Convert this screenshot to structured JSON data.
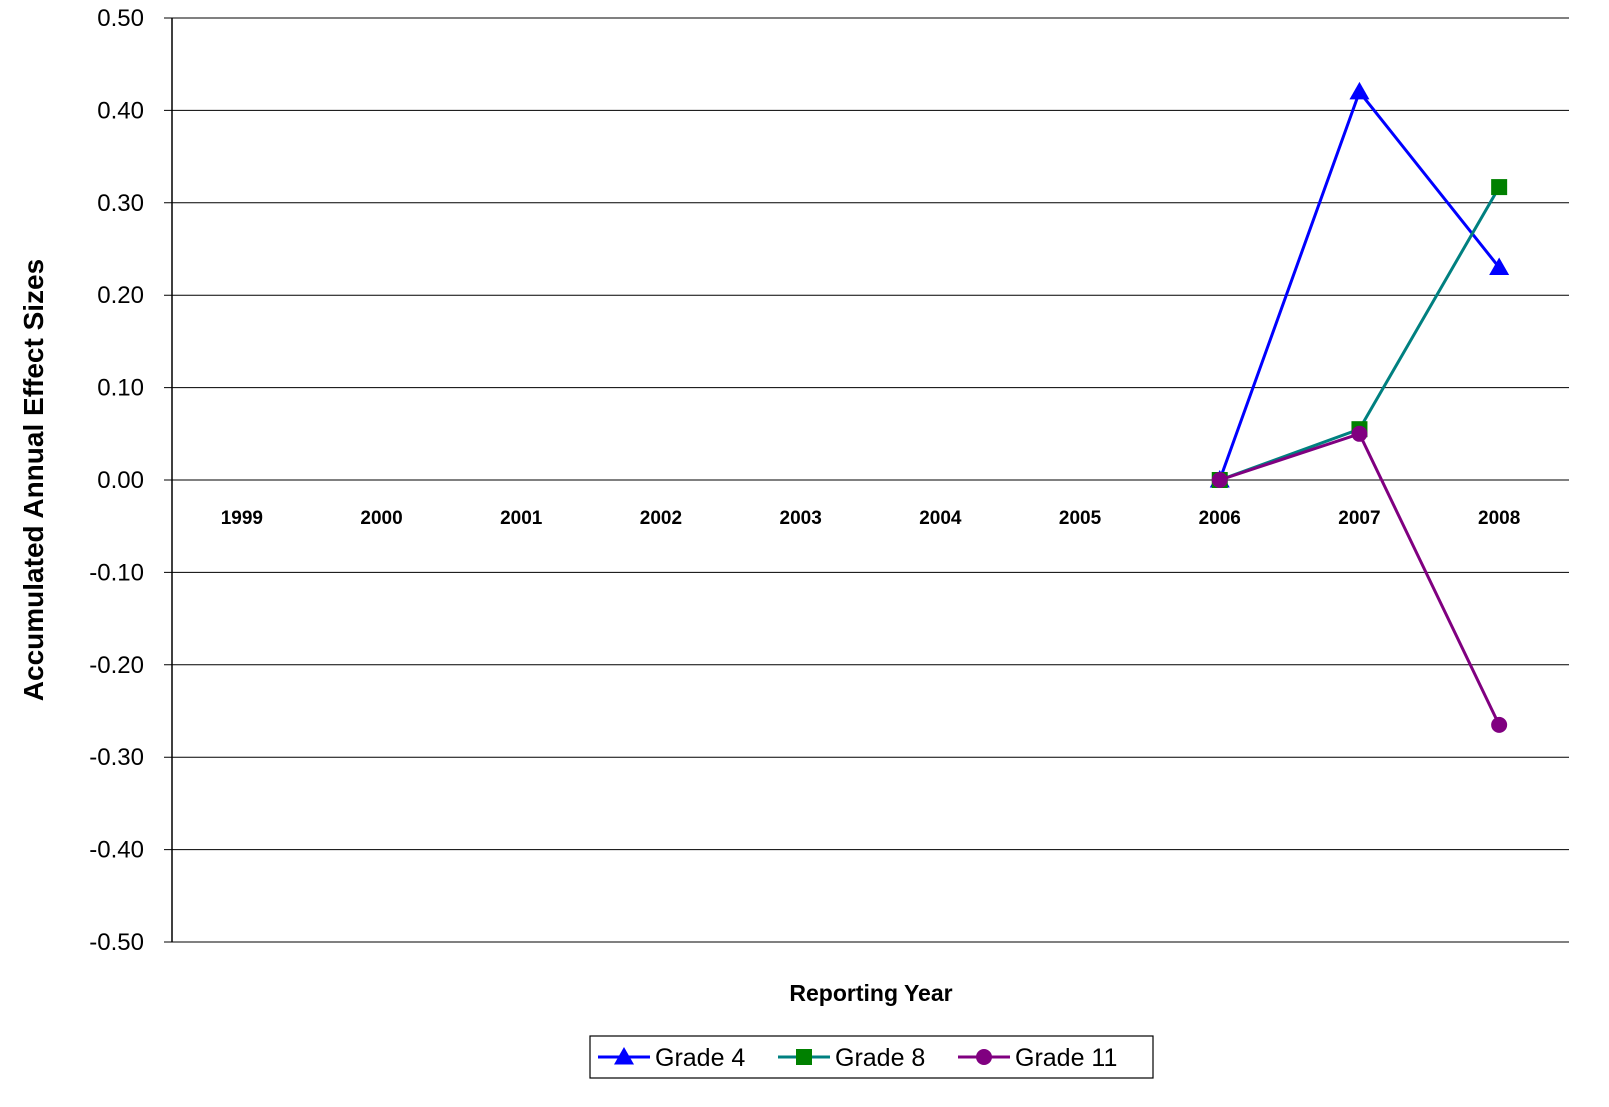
{
  "chart_data": {
    "type": "line",
    "title": "",
    "xlabel": "Reporting Year",
    "ylabel": "Accumulated Annual Effect Sizes",
    "categories": [
      "1999",
      "2000",
      "2001",
      "2002",
      "2003",
      "2004",
      "2005",
      "2006",
      "2007",
      "2008"
    ],
    "ylim": [
      -0.5,
      0.5
    ],
    "yticks": [
      "0.50",
      "0.40",
      "0.30",
      "0.20",
      "0.10",
      "0.00",
      "-0.10",
      "-0.20",
      "-0.30",
      "-0.40",
      "-0.50"
    ],
    "grid": true,
    "legend_position": "bottom",
    "series": [
      {
        "name": "Grade 4",
        "color": "#0000ff",
        "marker": "triangle",
        "values": [
          null,
          null,
          null,
          null,
          null,
          null,
          null,
          0.0,
          0.42,
          0.23
        ]
      },
      {
        "name": "Grade 8",
        "color": "#008080",
        "marker_color": "#008000",
        "marker": "square",
        "values": [
          null,
          null,
          null,
          null,
          null,
          null,
          null,
          0.0,
          0.055,
          0.317
        ]
      },
      {
        "name": "Grade 11",
        "color": "#800080",
        "marker": "circle",
        "values": [
          null,
          null,
          null,
          null,
          null,
          null,
          null,
          0.0,
          0.05,
          -0.265
        ]
      }
    ]
  }
}
